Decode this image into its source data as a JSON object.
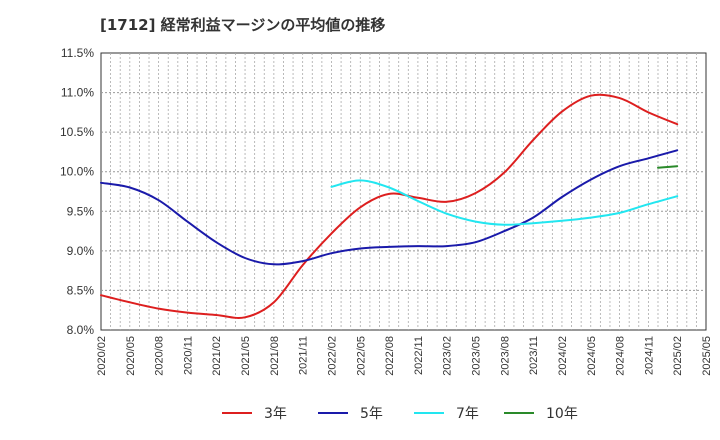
{
  "chart_data": {
    "type": "line",
    "title": "[1712]  経常利益マージンの平均値の推移",
    "xlabel": "",
    "ylabel": "",
    "ylim": [
      8.0,
      11.5
    ],
    "y_ticks": [
      "8.0%",
      "8.5%",
      "9.0%",
      "9.5%",
      "10.0%",
      "10.5%",
      "11.0%",
      "11.5%"
    ],
    "x_ticks": [
      "2020/02",
      "2020/05",
      "2020/08",
      "2020/11",
      "2021/02",
      "2021/05",
      "2021/08",
      "2021/11",
      "2022/02",
      "2022/05",
      "2022/08",
      "2022/11",
      "2023/02",
      "2023/05",
      "2023/08",
      "2023/11",
      "2024/02",
      "2024/05",
      "2024/08",
      "2024/11",
      "2025/02",
      "2025/05"
    ],
    "grid": true,
    "legend_position": "bottom",
    "series": [
      {
        "name": "3年",
        "color": "#dd1f1f",
        "points": [
          [
            "2020/02",
            8.44
          ],
          [
            "2020/05",
            8.35
          ],
          [
            "2020/08",
            8.27
          ],
          [
            "2020/11",
            8.22
          ],
          [
            "2021/02",
            8.19
          ],
          [
            "2021/05",
            8.16
          ],
          [
            "2021/08",
            8.35
          ],
          [
            "2021/11",
            8.82
          ],
          [
            "2022/02",
            9.22
          ],
          [
            "2022/05",
            9.55
          ],
          [
            "2022/08",
            9.72
          ],
          [
            "2022/11",
            9.67
          ],
          [
            "2023/02",
            9.62
          ],
          [
            "2023/05",
            9.73
          ],
          [
            "2023/08",
            9.99
          ],
          [
            "2023/11",
            10.4
          ],
          [
            "2024/02",
            10.76
          ],
          [
            "2024/05",
            10.96
          ],
          [
            "2024/08",
            10.93
          ],
          [
            "2024/11",
            10.75
          ],
          [
            "2025/02",
            10.6
          ]
        ]
      },
      {
        "name": "5年",
        "color": "#1a1aaa",
        "points": [
          [
            "2020/02",
            9.86
          ],
          [
            "2020/05",
            9.8
          ],
          [
            "2020/08",
            9.64
          ],
          [
            "2020/11",
            9.37
          ],
          [
            "2021/02",
            9.11
          ],
          [
            "2021/05",
            8.91
          ],
          [
            "2021/08",
            8.83
          ],
          [
            "2021/11",
            8.87
          ],
          [
            "2022/02",
            8.97
          ],
          [
            "2022/05",
            9.03
          ],
          [
            "2022/08",
            9.05
          ],
          [
            "2022/11",
            9.06
          ],
          [
            "2023/02",
            9.06
          ],
          [
            "2023/05",
            9.11
          ],
          [
            "2023/08",
            9.25
          ],
          [
            "2023/11",
            9.42
          ],
          [
            "2024/02",
            9.68
          ],
          [
            "2024/05",
            9.9
          ],
          [
            "2024/08",
            10.07
          ],
          [
            "2024/11",
            10.17
          ],
          [
            "2025/02",
            10.27
          ]
        ]
      },
      {
        "name": "7年",
        "color": "#22e6f0",
        "points": [
          [
            "2022/02",
            9.81
          ],
          [
            "2022/05",
            9.89
          ],
          [
            "2022/08",
            9.8
          ],
          [
            "2022/11",
            9.63
          ],
          [
            "2023/02",
            9.47
          ],
          [
            "2023/05",
            9.37
          ],
          [
            "2023/08",
            9.33
          ],
          [
            "2023/11",
            9.35
          ],
          [
            "2024/02",
            9.38
          ],
          [
            "2024/05",
            9.42
          ],
          [
            "2024/08",
            9.48
          ],
          [
            "2024/11",
            9.59
          ],
          [
            "2025/02",
            9.69
          ]
        ]
      },
      {
        "name": "10年",
        "color": "#2a8a2a",
        "points": [
          [
            "2024/12",
            10.05
          ],
          [
            "2025/02",
            10.07
          ]
        ]
      }
    ]
  }
}
